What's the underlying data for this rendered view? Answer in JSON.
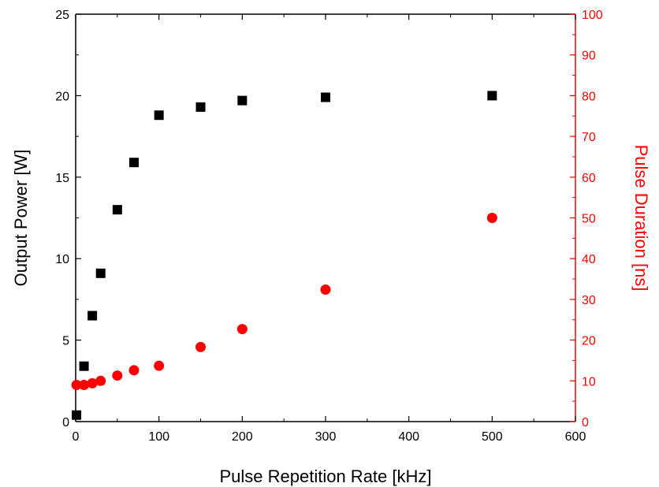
{
  "chart_data": {
    "type": "scatter",
    "title": "",
    "xlabel": "Pulse Repetition Rate [kHz]",
    "ylabel_left": "Output Power [W]",
    "ylabel_right": "Pulse Duration [ns]",
    "xlim": [
      0,
      600
    ],
    "ylim_left": [
      0,
      25
    ],
    "ylim_right": [
      0,
      100
    ],
    "x_ticks": [
      "0",
      "100",
      "200",
      "300",
      "400",
      "500",
      "600"
    ],
    "y_left_ticks": [
      "0",
      "5",
      "10",
      "15",
      "20",
      "25"
    ],
    "y_right_ticks": [
      "0",
      "10",
      "20",
      "30",
      "40",
      "50",
      "60",
      "70",
      "80",
      "90",
      "100"
    ],
    "grid": false,
    "legend": "none",
    "series": [
      {
        "axis": "left",
        "marker": "square",
        "color": "#000000",
        "points": [
          [
            1,
            0.4
          ],
          [
            10,
            3.4
          ],
          [
            20,
            6.5
          ],
          [
            30,
            9.1
          ],
          [
            50,
            13.0
          ],
          [
            70,
            15.9
          ],
          [
            100,
            18.8
          ],
          [
            150,
            19.3
          ],
          [
            200,
            19.7
          ],
          [
            300,
            19.9
          ],
          [
            500,
            20.0
          ]
        ]
      },
      {
        "axis": "right",
        "marker": "circle",
        "color": "#ff0000",
        "points": [
          [
            1,
            9.0
          ],
          [
            10,
            9.0
          ],
          [
            20,
            9.4
          ],
          [
            30,
            10.0
          ],
          [
            50,
            11.3
          ],
          [
            70,
            12.6
          ],
          [
            100,
            13.7
          ],
          [
            150,
            18.3
          ],
          [
            200,
            22.7
          ],
          [
            300,
            32.4
          ],
          [
            500,
            50.0
          ]
        ]
      }
    ]
  }
}
